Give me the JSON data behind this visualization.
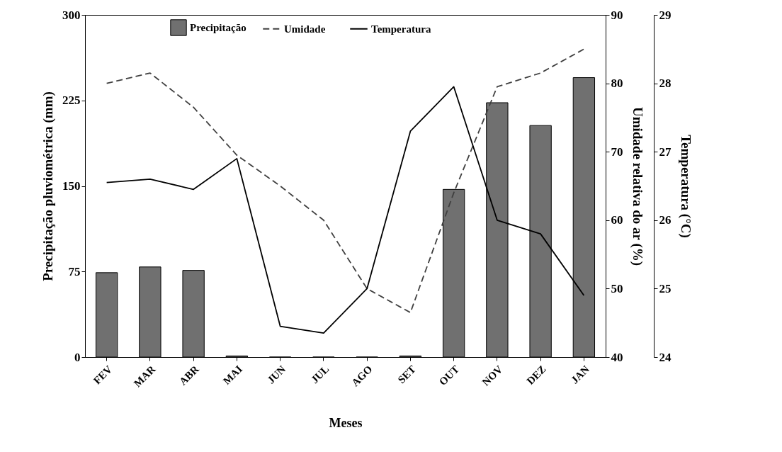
{
  "chart_data": {
    "type": "bar",
    "xlabel": "Meses",
    "ylabel": "Precipitação pluviométrica (mm)",
    "y2label": "Umidade relativa do ar (%)",
    "y3label": "Temperatura (°C)",
    "categories": [
      "FEV",
      "MAR",
      "ABR",
      "MAI",
      "JUN",
      "JUL",
      "AGO",
      "SET",
      "OUT",
      "NOV",
      "DEZ",
      "JAN"
    ],
    "series": [
      {
        "name": "Precipitação",
        "color": "#707070",
        "values": [
          74,
          79,
          76,
          1,
          0,
          0,
          0,
          1,
          147,
          223,
          203,
          245
        ]
      },
      {
        "name": "Umidade",
        "type": "line",
        "axis": "y2",
        "line_style": "dashed",
        "color": "#404040",
        "values": [
          80,
          81.5,
          76.5,
          69.5,
          65,
          60,
          50,
          46.5,
          64,
          79.5,
          81.5,
          85
        ]
      },
      {
        "name": "Temperatura",
        "type": "line",
        "axis": "y3",
        "line_style": "solid",
        "color": "#000000",
        "values": [
          26.55,
          26.6,
          26.45,
          26.9,
          24.45,
          24.35,
          25,
          27.3,
          27.95,
          26,
          25.8,
          24.9
        ]
      }
    ],
    "ylim": [
      0,
      300
    ],
    "yticks": [
      0,
      75,
      150,
      225,
      300
    ],
    "y2lim": [
      40,
      90
    ],
    "y2ticks": [
      40,
      50,
      60,
      70,
      80,
      90
    ],
    "y3lim": [
      24,
      29
    ],
    "y3ticks": [
      24,
      25,
      26,
      27,
      28,
      29
    ],
    "legend": "top",
    "grid": false,
    "marker": "none"
  }
}
